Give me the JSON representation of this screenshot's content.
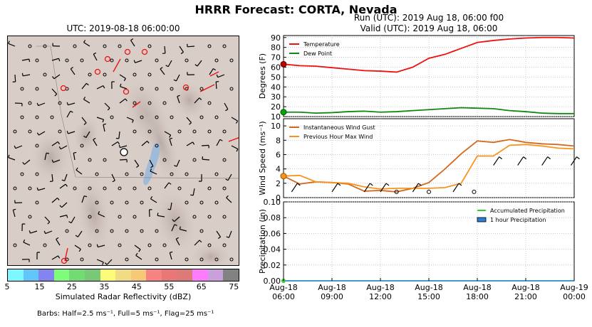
{
  "title": "HRRR Forecast: CORTA, Nevada",
  "map": {
    "time_label": "UTC: 2019-08-18 06:00:00",
    "colorbar": {
      "label": "Simulated Radar Reflectivity (dBZ)",
      "ticks": [
        "5",
        "15",
        "25",
        "35",
        "45",
        "55",
        "65",
        "75"
      ],
      "colors": [
        "#7ff7ff",
        "#63c6fa",
        "#8484f0",
        "#7ffc7b",
        "#73db73",
        "#78c878",
        "#fcfc78",
        "#f0dc84",
        "#f7c878",
        "#f78282",
        "#e87878",
        "#dc7a7a",
        "#fc7cfc",
        "#c8a0dc",
        "#828282"
      ]
    },
    "barbs_note": "Barbs: Half=2.5 ms⁻¹, Full=5 ms⁻¹, Flag=25 ms⁻¹"
  },
  "run_info": {
    "run": "Run (UTC): 2019 Aug 18, 06:00 f00",
    "valid": "Valid (UTC): 2019 Aug 18, 06:00"
  },
  "chart_data": [
    {
      "type": "line",
      "ylabel": "Degrees (F)",
      "ylim": [
        10,
        92
      ],
      "yticks": [
        10,
        20,
        30,
        40,
        50,
        60,
        70,
        80,
        90
      ],
      "grid": true,
      "legend": "top-left",
      "x_hours": [
        0,
        1,
        2,
        3,
        4,
        5,
        6,
        7,
        8,
        9,
        10,
        11,
        12,
        13,
        14,
        15,
        16,
        17,
        18
      ],
      "series": [
        {
          "name": "Temperature",
          "color": "#ee1111",
          "values": [
            63,
            61.5,
            61,
            59.5,
            58,
            56.5,
            56,
            55,
            60,
            69,
            73,
            79,
            85,
            87,
            88.5,
            89.5,
            90,
            90,
            89.5
          ]
        },
        {
          "name": "Dew Point",
          "color": "#118811",
          "values": [
            14.5,
            14.5,
            13.5,
            14,
            15,
            15.5,
            14.5,
            15,
            16,
            17,
            18,
            19,
            18.5,
            18,
            16,
            15,
            13.5,
            13,
            13
          ]
        }
      ]
    },
    {
      "type": "line",
      "ylabel": "Wind Speed (ms⁻¹)",
      "ylim": [
        0,
        11
      ],
      "yticks": [
        0,
        2,
        4,
        6,
        8,
        10
      ],
      "grid": true,
      "legend": "top-left",
      "x_hours": [
        0,
        1,
        2,
        3,
        4,
        5,
        6,
        7,
        8,
        9,
        10,
        11,
        12,
        13,
        14,
        15,
        16,
        17,
        18
      ],
      "series": [
        {
          "name": "Instantaneous Wind Gust",
          "color": "#d2691e",
          "values": [
            3.0,
            1.9,
            2.2,
            2.1,
            1.9,
            0.9,
            1.0,
            0.8,
            1.3,
            2.1,
            4.0,
            6.1,
            7.9,
            7.7,
            8.1,
            7.7,
            7.5,
            7.4,
            7.2
          ]
        },
        {
          "name": "Previous Hour Max Wind",
          "color": "#f7941d",
          "values": [
            3.0,
            3.1,
            2.2,
            2.1,
            2.0,
            1.5,
            1.2,
            1.3,
            1.3,
            1.3,
            1.4,
            2.0,
            5.8,
            5.8,
            7.3,
            7.4,
            7.2,
            6.9,
            6.8
          ]
        }
      ]
    },
    {
      "type": "area",
      "ylabel": "Precipitation (in)",
      "ylim": [
        0,
        0.1
      ],
      "yticks": [
        "0.00",
        "0.02",
        "0.04",
        "0.06",
        "0.08",
        "0.10"
      ],
      "grid": true,
      "legend": "top-right",
      "x_ticks": [
        {
          "hour": 0,
          "l1": "Aug-18",
          "l2": "06:00"
        },
        {
          "hour": 3,
          "l1": "Aug-18",
          "l2": "09:00"
        },
        {
          "hour": 6,
          "l1": "Aug-18",
          "l2": "12:00"
        },
        {
          "hour": 9,
          "l1": "Aug-18",
          "l2": "15:00"
        },
        {
          "hour": 12,
          "l1": "Aug-18",
          "l2": "18:00"
        },
        {
          "hour": 15,
          "l1": "Aug-18",
          "l2": "21:00"
        },
        {
          "hour": 18,
          "l1": "Aug-19",
          "l2": "00:00"
        }
      ],
      "series": [
        {
          "name": "Accumulated Precipitation",
          "color": "#33cc33",
          "values": [
            0,
            0,
            0,
            0,
            0,
            0,
            0,
            0,
            0,
            0,
            0,
            0,
            0,
            0,
            0,
            0,
            0,
            0,
            0
          ]
        },
        {
          "name": "1 hour Precipitation",
          "color": "#2a7fd4",
          "values": [
            0,
            0,
            0,
            0,
            0,
            0,
            0,
            0,
            0,
            0,
            0,
            0,
            0,
            0,
            0,
            0,
            0,
            0,
            0
          ]
        }
      ]
    }
  ]
}
